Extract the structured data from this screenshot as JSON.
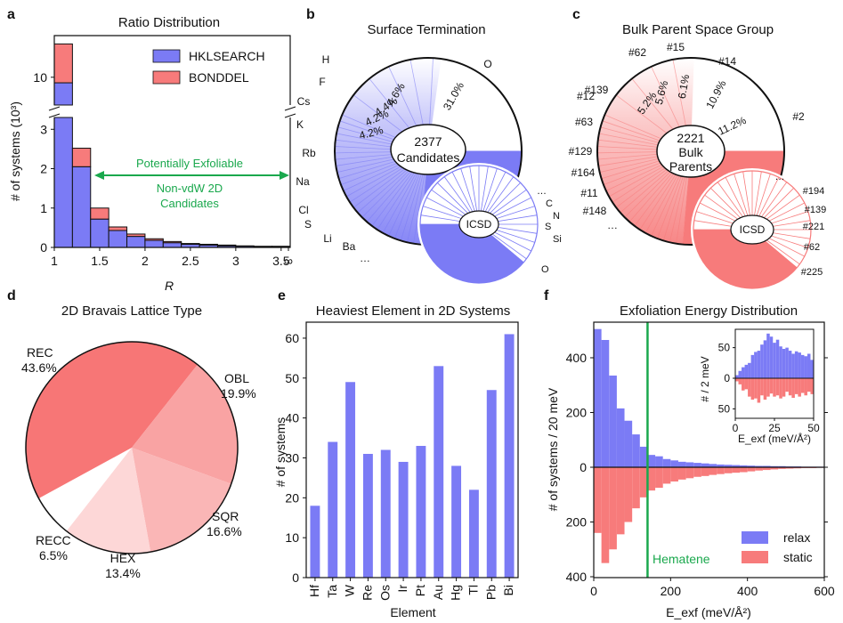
{
  "colors": {
    "blue": "#7b7bf5",
    "red": "#f77b7b",
    "green": "#1aa84d",
    "black": "#111111"
  },
  "chart_data": [
    {
      "panel": "a",
      "type": "bar",
      "title": "Ratio Distribution",
      "xlabel": "R",
      "ylabel": "# of systems (10³)",
      "xticks": [
        "1",
        "1.5",
        "2",
        "2.5",
        "3",
        "3.5",
        "∞"
      ],
      "yticks_lower": [
        "0",
        "1",
        "2",
        "3"
      ],
      "yticks_upper": [
        "10"
      ],
      "bins": [
        "1-1.2",
        "1.2-1.4",
        "1.4-1.6",
        "1.6-1.8",
        "1.8-2.0",
        "2.0-2.2",
        "2.2-2.4",
        "2.4-2.6",
        "2.6-2.8",
        "2.8-3.0",
        "3.0-3.2",
        "3.2-3.4",
        "3.4-3.6",
        "3.6-∞"
      ],
      "series": [
        {
          "name": "HKLSEARCH",
          "values": [
            9.8,
            2.05,
            0.72,
            0.43,
            0.28,
            0.18,
            0.12,
            0.08,
            0.06,
            0.04,
            0.03,
            0.02,
            0.02,
            0.07
          ]
        },
        {
          "name": "BONDDEL",
          "values": [
            1.4,
            0.47,
            0.28,
            0.09,
            0.06,
            0.04,
            0.03,
            0.02,
            0.02,
            0.02,
            0.01,
            0.01,
            0.01,
            0.13
          ]
        }
      ],
      "annotation": {
        "arrow": "Potentially Exfoliable",
        "label_line1": "Non-vdW 2D",
        "label_line2": "Candidates"
      }
    },
    {
      "panel": "b",
      "type": "pie",
      "title": "Surface Termination",
      "center_line1": "2377",
      "center_line2": "Candidates",
      "slices": [
        {
          "label": "O",
          "pct": 31.0
        },
        {
          "label": "H",
          "pct": 4.6
        },
        {
          "label": "F",
          "pct": 4.4
        },
        {
          "label": "Cs",
          "pct": 4.2
        },
        {
          "label": "K",
          "pct": 4.2
        },
        {
          "label": "Rb"
        },
        {
          "label": "Na"
        },
        {
          "label": "Cl"
        },
        {
          "label": "S"
        },
        {
          "label": "Li"
        },
        {
          "label": "Ba"
        },
        {
          "label": "…"
        }
      ],
      "pct_labels": [
        "31.0%",
        "4.6%",
        "4.4%",
        "4.2%",
        "4.2%"
      ],
      "inset": {
        "center": "ICSD",
        "labels": [
          "…",
          "C",
          "N",
          "S",
          "Si",
          "O"
        ]
      }
    },
    {
      "panel": "c",
      "type": "pie",
      "title": "Bulk Parent Space Group",
      "center_line1": "2221",
      "center_line2": "Bulk",
      "center_line3": "Parents",
      "slices": [
        {
          "label": "#2",
          "pct": 11.2
        },
        {
          "label": "#14",
          "pct": 10.9
        },
        {
          "label": "#15",
          "pct": 6.1
        },
        {
          "label": "#62",
          "pct": 5.6
        },
        {
          "label": "#139",
          "pct": 5.2
        },
        {
          "label": "#12"
        },
        {
          "label": "#63"
        },
        {
          "label": "#129"
        },
        {
          "label": "#164"
        },
        {
          "label": "#11"
        },
        {
          "label": "#148"
        },
        {
          "label": "…"
        }
      ],
      "pct_labels": [
        "11.2%",
        "10.9%",
        "6.1%",
        "5.6%",
        "5.2%"
      ],
      "inset": {
        "center": "ICSD",
        "labels": [
          "…",
          "#194",
          "#139",
          "#221",
          "#62",
          "#225"
        ]
      }
    },
    {
      "panel": "d",
      "type": "pie",
      "title": "2D Bravais Lattice Type",
      "slices": [
        {
          "label": "REC",
          "value": "43.6%",
          "pct": 43.6
        },
        {
          "label": "OBL",
          "value": "19.9%",
          "pct": 19.9
        },
        {
          "label": "SQR",
          "value": "16.6%",
          "pct": 16.6
        },
        {
          "label": "HEX",
          "value": "13.4%",
          "pct": 13.4
        },
        {
          "label": "RECC",
          "value": "6.5%",
          "pct": 6.5
        }
      ]
    },
    {
      "panel": "e",
      "type": "bar",
      "title": "Heaviest Element in 2D Systems",
      "xlabel": "Element",
      "ylabel": "# of systems",
      "ylim": [
        0,
        64
      ],
      "yticks": [
        "0",
        "10",
        "20",
        "30",
        "40",
        "50",
        "60"
      ],
      "categories": [
        "Hf",
        "Ta",
        "W",
        "Re",
        "Os",
        "Ir",
        "Pt",
        "Au",
        "Hg",
        "Tl",
        "Pb",
        "Bi"
      ],
      "values": [
        18,
        34,
        49,
        31,
        32,
        29,
        33,
        53,
        28,
        22,
        47,
        61
      ]
    },
    {
      "panel": "f",
      "type": "bar",
      "title": "Exfoliation Energy Distribution",
      "xlabel": "E_exf (meV/Å²)",
      "ylabel": "# of systems / 20 meV",
      "xticks": [
        "0",
        "200",
        "400",
        "600"
      ],
      "yticks": [
        "400",
        "200",
        "0",
        "200",
        "400"
      ],
      "bin_width": 20,
      "series": [
        {
          "name": "relax",
          "values": [
            505,
            465,
            335,
            215,
            170,
            120,
            75,
            45,
            40,
            30,
            25,
            20,
            18,
            16,
            14,
            12,
            10,
            9,
            8,
            7,
            6,
            5,
            5,
            4,
            4,
            3,
            3,
            2,
            2,
            2
          ]
        },
        {
          "name": "static",
          "values": [
            240,
            350,
            300,
            245,
            200,
            150,
            110,
            85,
            75,
            60,
            52,
            45,
            40,
            35,
            32,
            28,
            25,
            22,
            20,
            18,
            15,
            12,
            10,
            8,
            6,
            5,
            4,
            3,
            3,
            2
          ]
        }
      ],
      "marker": {
        "label": "Hematene",
        "x": 140
      },
      "inset": {
        "ylabel": "# / 2 meV",
        "xlabel": "E_exf (meV/Å²)",
        "xticks": [
          "0",
          "25",
          "50"
        ],
        "yticks": [
          "50",
          "0",
          "50"
        ],
        "relax": [
          5,
          12,
          18,
          22,
          25,
          38,
          43,
          45,
          55,
          62,
          73,
          68,
          58,
          63,
          52,
          48,
          50,
          45,
          40,
          44,
          42,
          38,
          36,
          40,
          30
        ],
        "static": [
          5,
          10,
          20,
          18,
          30,
          35,
          33,
          40,
          28,
          35,
          30,
          25,
          30,
          28,
          33,
          30,
          22,
          28,
          32,
          26,
          30,
          24,
          28,
          22,
          26
        ]
      }
    }
  ]
}
